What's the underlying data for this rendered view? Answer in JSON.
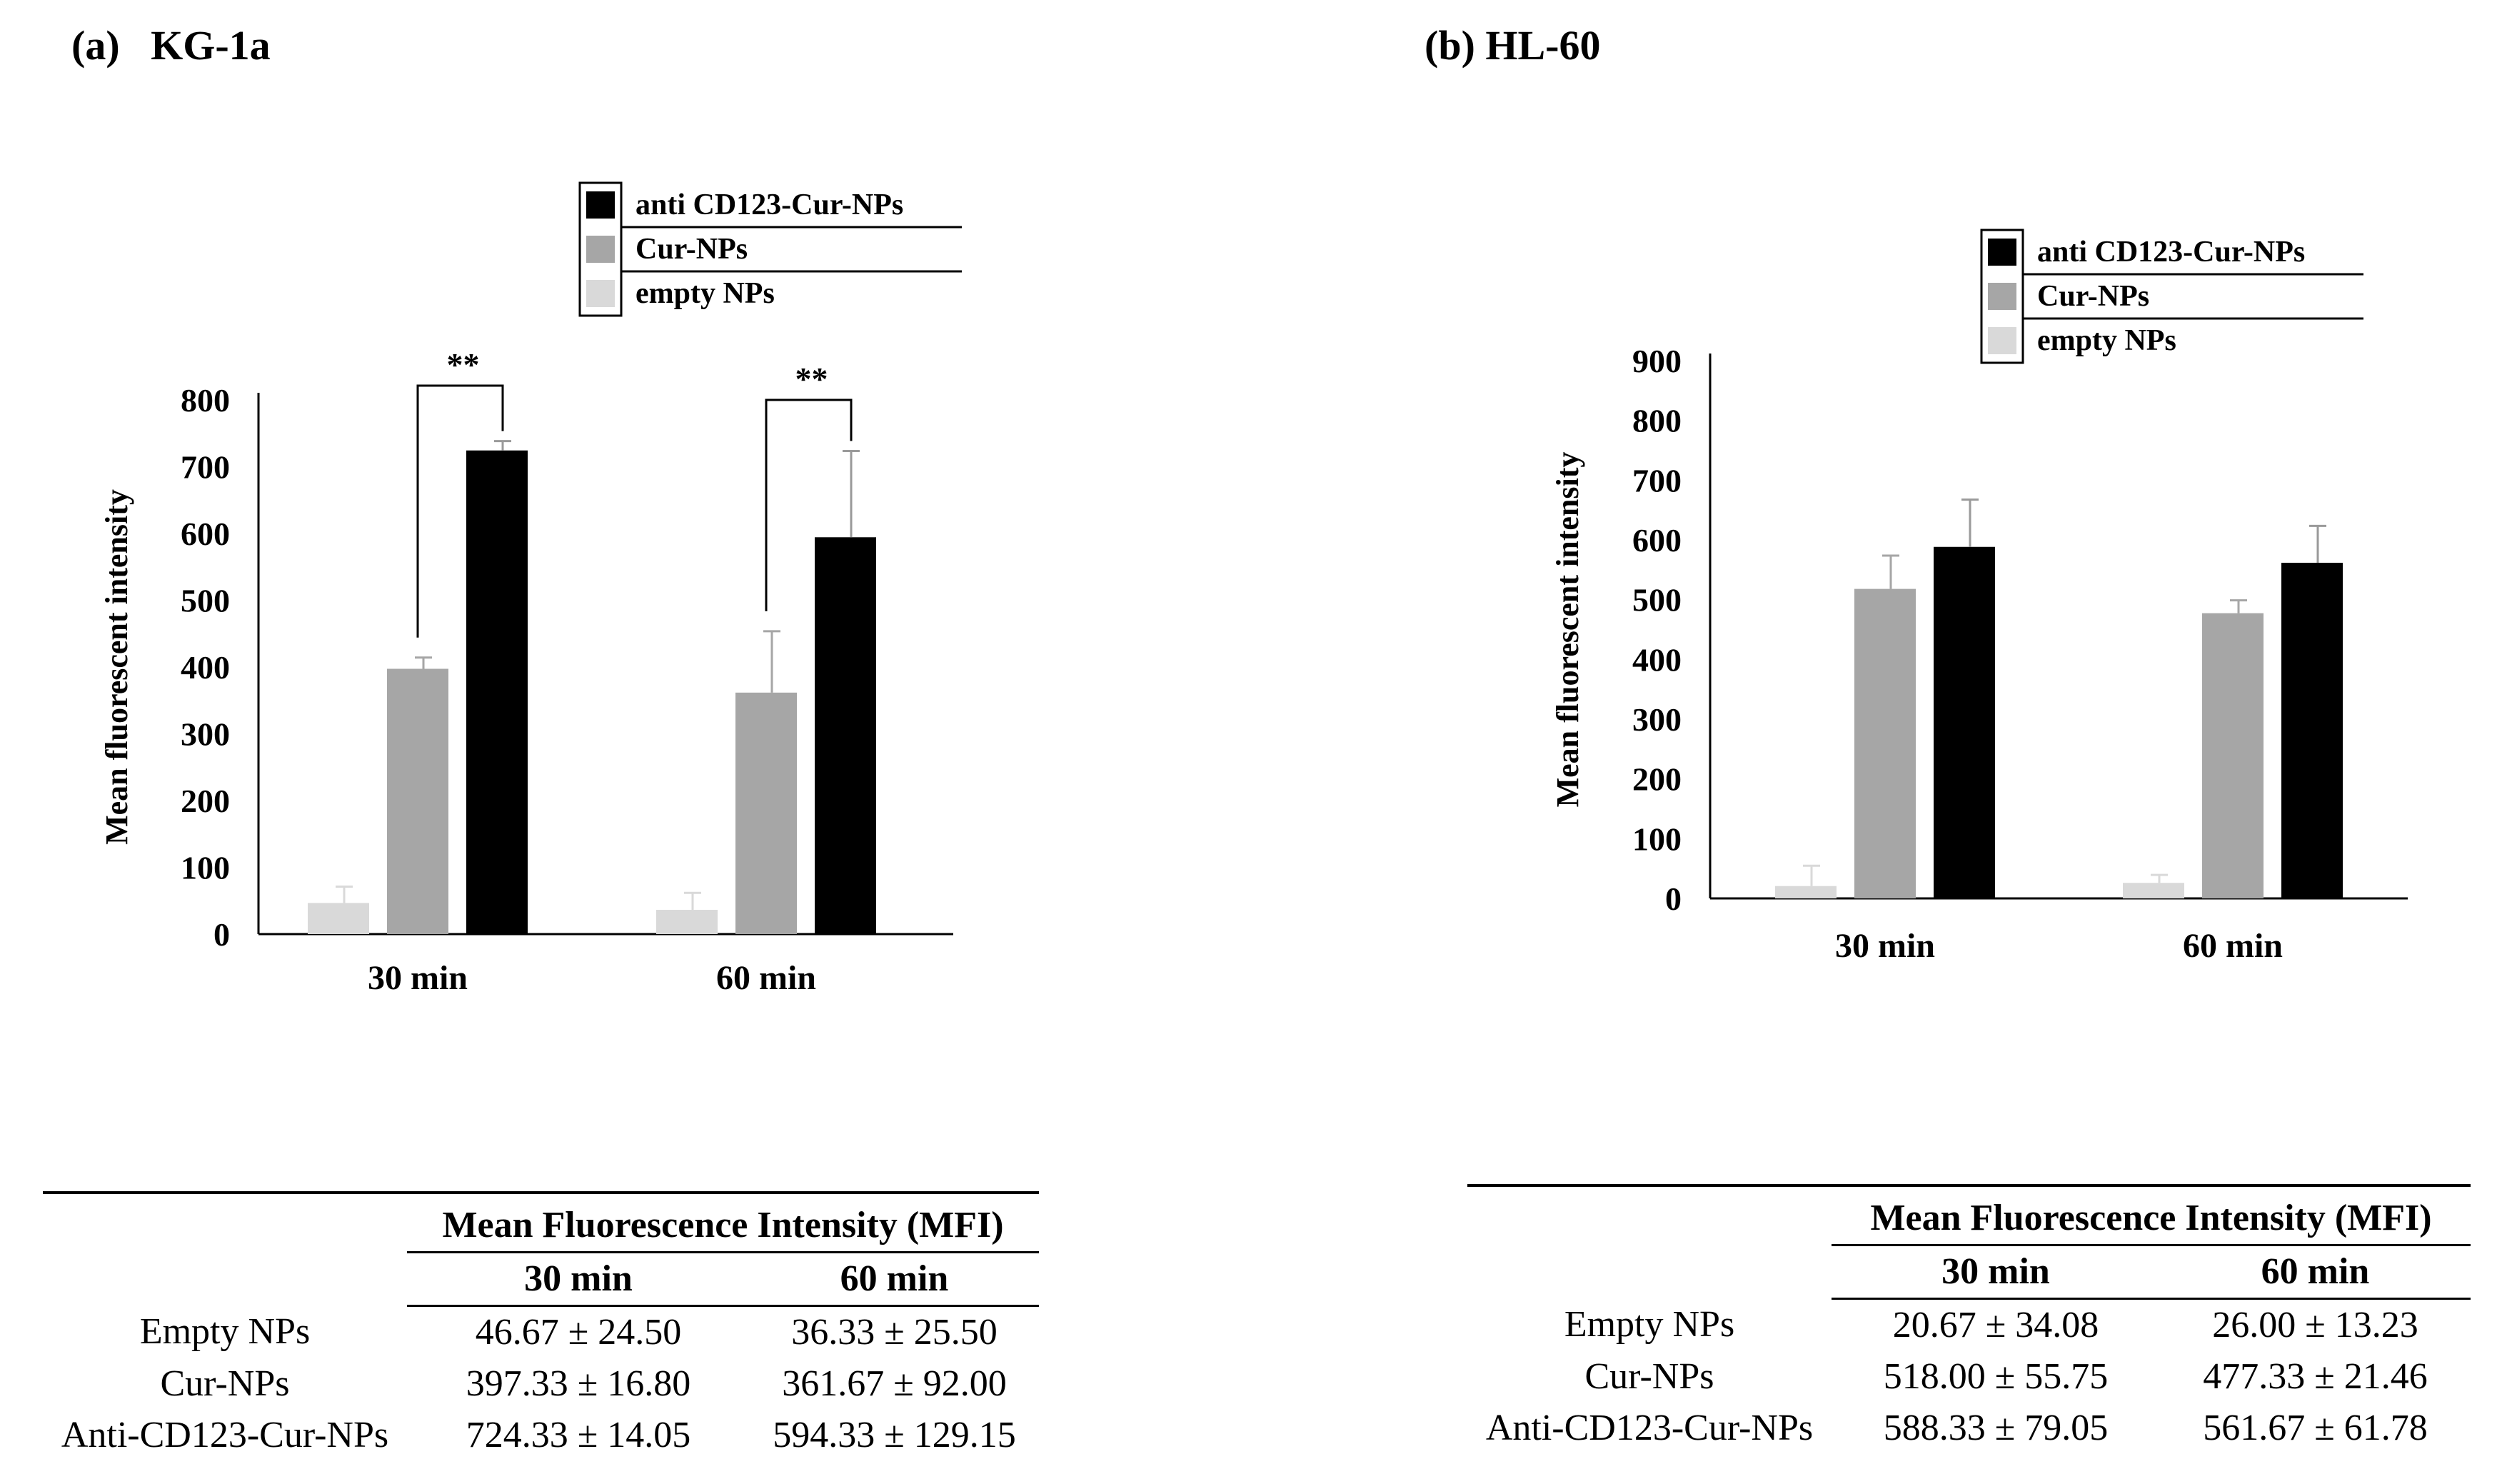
{
  "chart_data": [
    {
      "type": "bar",
      "panel_label": "(a)",
      "cell_line": "KG-1a",
      "title": "(a)   KG-1a",
      "ylabel": "Mean fluorescent intensity",
      "xlabel": "",
      "ylim": [
        0,
        800
      ],
      "yticks": [
        "0",
        "100",
        "200",
        "300",
        "400",
        "500",
        "600",
        "700",
        "800"
      ],
      "categories": [
        "30 min",
        "60 min"
      ],
      "legend": [
        "anti CD123-Cur-NPs",
        "Cur-NPs",
        "empty NPs"
      ],
      "series": [
        {
          "name": "empty NPs",
          "color": "#d9d9d9",
          "values": [
            46.67,
            36.33
          ],
          "errors": [
            24.5,
            25.5
          ]
        },
        {
          "name": "Cur-NPs",
          "color": "#a6a6a6",
          "values": [
            397.33,
            361.67
          ],
          "errors": [
            16.8,
            92.0
          ]
        },
        {
          "name": "anti CD123-Cur-NPs",
          "color": "#000000",
          "values": [
            724.33,
            594.33
          ],
          "errors": [
            14.05,
            129.15
          ]
        }
      ],
      "significance": [
        {
          "category": "30 min",
          "label": "**"
        },
        {
          "category": "60 min",
          "label": "**"
        }
      ]
    },
    {
      "type": "bar",
      "panel_label": "(b)",
      "cell_line": "HL-60",
      "title": "(b) HL-60",
      "ylabel": "Mean fluorescent intensity",
      "xlabel": "",
      "ylim": [
        0,
        900
      ],
      "yticks": [
        "0",
        "100",
        "200",
        "300",
        "400",
        "500",
        "600",
        "700",
        "800",
        "900"
      ],
      "categories": [
        "30 min",
        "60 min"
      ],
      "legend": [
        "anti CD123-Cur-NPs",
        "Cur-NPs",
        "empty NPs"
      ],
      "series": [
        {
          "name": "empty NPs",
          "color": "#d9d9d9",
          "values": [
            20.67,
            26.0
          ],
          "errors": [
            34.08,
            13.23
          ]
        },
        {
          "name": "Cur-NPs",
          "color": "#a6a6a6",
          "values": [
            518.0,
            477.33
          ],
          "errors": [
            55.75,
            21.46
          ]
        },
        {
          "name": "anti CD123-Cur-NPs",
          "color": "#000000",
          "values": [
            588.33,
            561.67
          ],
          "errors": [
            79.05,
            61.78
          ]
        }
      ],
      "significance": []
    }
  ],
  "tables": [
    {
      "caption": "Mean Fluorescence Intensity (MFI)",
      "columns": [
        "30 min",
        "60 min"
      ],
      "rows": [
        {
          "label": "Empty NPs",
          "v30": "46.67 ± 24.50",
          "v60": "36.33 ± 25.50"
        },
        {
          "label": "Cur-NPs",
          "v30": "397.33 ± 16.80",
          "v60": "361.67 ± 92.00"
        },
        {
          "label": "Anti-CD123-Cur-NPs",
          "v30": "724.33 ± 14.05",
          "v60": "594.33 ± 129.15"
        }
      ]
    },
    {
      "caption": "Mean Fluorescence Intensity (MFI)",
      "columns": [
        "30 min",
        "60 min"
      ],
      "rows": [
        {
          "label": "Empty NPs",
          "v30": "20.67 ± 34.08",
          "v60": "26.00 ± 13.23"
        },
        {
          "label": "Cur-NPs",
          "v30": "518.00 ± 55.75",
          "v60": "477.33 ± 21.46"
        },
        {
          "label": "Anti-CD123-Cur-NPs",
          "v30": "588.33 ± 79.05",
          "v60": "561.67 ± 61.78"
        }
      ]
    }
  ]
}
